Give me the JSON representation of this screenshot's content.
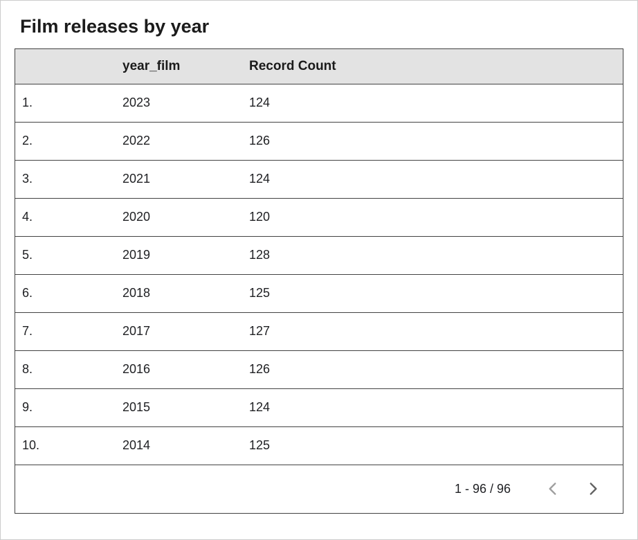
{
  "title": "Film releases by year",
  "chart_data": {
    "type": "table",
    "columns": [
      "",
      "year_film",
      "Record Count"
    ],
    "rows": [
      [
        "1.",
        "2023",
        "124"
      ],
      [
        "2.",
        "2022",
        "126"
      ],
      [
        "3.",
        "2021",
        "124"
      ],
      [
        "4.",
        "2020",
        "120"
      ],
      [
        "5.",
        "2019",
        "128"
      ],
      [
        "6.",
        "2018",
        "125"
      ],
      [
        "7.",
        "2017",
        "127"
      ],
      [
        "8.",
        "2016",
        "126"
      ],
      [
        "9.",
        "2015",
        "124"
      ],
      [
        "10.",
        "2014",
        "125"
      ]
    ]
  },
  "pagination": {
    "range_label": "1 - 96 / 96"
  },
  "colors": {
    "header_bg": "#e3e3e3",
    "table_border": "#424242",
    "outer_border": "#cccccc",
    "text": "#202124",
    "chevron_disabled": "#9e9e9e",
    "chevron_enabled": "#616161"
  }
}
